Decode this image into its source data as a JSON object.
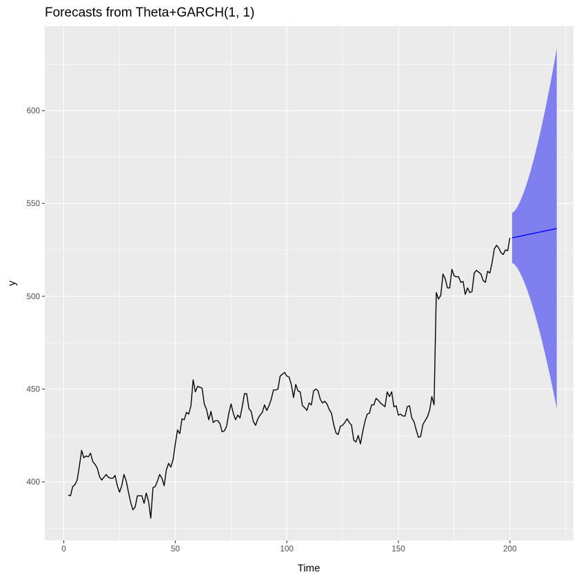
{
  "chart_data": {
    "type": "line",
    "title": "Forecasts from Theta+GARCH(1, 1)",
    "xlabel": "Time",
    "ylabel": "y",
    "xlim": [
      -8.5,
      228.5
    ],
    "ylim": [
      368.5,
      645.5
    ],
    "x_ticks": [
      0,
      50,
      100,
      150,
      200
    ],
    "y_ticks": [
      400,
      450,
      500,
      550,
      600
    ],
    "grid": true,
    "colors": {
      "panel_background": "#ebebeb",
      "grid_major": "#ffffff",
      "series": "#000000",
      "forecast": "#0000ff",
      "interval": "#7f7fef"
    },
    "series": [
      {
        "x_start": 2,
        "x_step": 1,
        "values": [
          393,
          392.5,
          397.5,
          398.5,
          401,
          408.5,
          417,
          413,
          414,
          413.5,
          415.5,
          411,
          409.5,
          407.5,
          403,
          401,
          402.5,
          404,
          402.5,
          402,
          402,
          403.5,
          398,
          394.5,
          398,
          404,
          400.5,
          394.5,
          389,
          385,
          386.5,
          392.5,
          392.5,
          392.5,
          388.5,
          394,
          389.5,
          380.5,
          397,
          397.5,
          400.5,
          404,
          402,
          398,
          406.5,
          410,
          408,
          412,
          420.5,
          428,
          426,
          434,
          433.5,
          437.5,
          436.5,
          441,
          455,
          448.5,
          451.5,
          451,
          450.5,
          442,
          439,
          433.5,
          438,
          432,
          433,
          433,
          431.5,
          427,
          427.5,
          430,
          437,
          442,
          437,
          433.5,
          436,
          434.5,
          440.5,
          447.5,
          447.5,
          439.5,
          438,
          432.5,
          430.5,
          434,
          436,
          437.5,
          441.5,
          438.5,
          441,
          444.5,
          449.5,
          449.5,
          450,
          457,
          458,
          459,
          457,
          456.5,
          452.5,
          445.5,
          452.5,
          449,
          448.5,
          441,
          440,
          438.5,
          442.5,
          441.5,
          449,
          450,
          449,
          444.5,
          442.5,
          443.5,
          442,
          439,
          437,
          431,
          426.5,
          425.5,
          430,
          430.5,
          432,
          434,
          432,
          430.5,
          422.5,
          421.5,
          425,
          420.5,
          427,
          432.5,
          436.5,
          437,
          441.5,
          441.5,
          445,
          444,
          442.5,
          441.5,
          440.5,
          448.5,
          446,
          448.5,
          440.5,
          441,
          436,
          436.5,
          435.5,
          435.5,
          440.5,
          441,
          434.5,
          432.5,
          428,
          424,
          424.5,
          431,
          433,
          435,
          438.5,
          446,
          441.5,
          502,
          498.5,
          500.5,
          512,
          509.5,
          504.5,
          504.5,
          514.5,
          511,
          510.5,
          510.5,
          507.5,
          508,
          501,
          504.5,
          502,
          502.5,
          512.5,
          514,
          513,
          512,
          508.5,
          507.5,
          513.5,
          512.5,
          518,
          525.5,
          527.5,
          526,
          523.5,
          522.5,
          525,
          524.5,
          531.5
        ]
      }
    ],
    "forecast": {
      "x": [
        201,
        221
      ],
      "mean": [
        531.5,
        536.5
      ],
      "lower": [
        518,
        439.5
      ],
      "upper": [
        545,
        633.5
      ]
    }
  }
}
